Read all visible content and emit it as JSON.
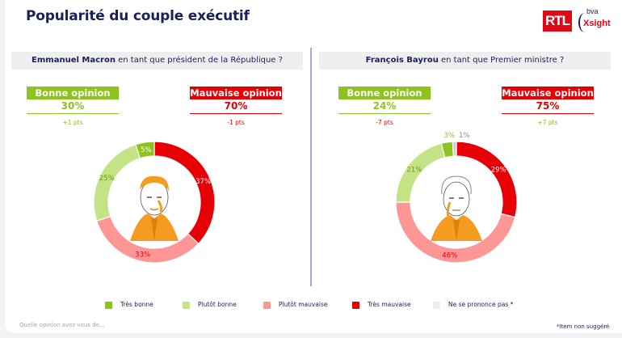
{
  "header": {
    "title": "Popularité du couple exécutif",
    "logo_rtl": "RTL",
    "logo_bva_top": "bva",
    "logo_bva_bottom": "Xsight"
  },
  "panels": [
    {
      "name_bold": "Emmanuel Macron",
      "question_rest": " en tant que président de la République ?",
      "bonne": {
        "label": "Bonne opinion",
        "value": "30%",
        "delta": "+1 pts"
      },
      "mauvaise": {
        "label": "Mauvaise opinion",
        "value": "70%",
        "delta": "-1 pts"
      }
    },
    {
      "name_bold": "François Bayrou",
      "question_rest": " en tant que Premier ministre ?",
      "bonne": {
        "label": "Bonne opinion",
        "value": "24%",
        "delta": "-7 pts"
      },
      "mauvaise": {
        "label": "Mauvaise opinion",
        "value": "75%",
        "delta": "+7 pts"
      }
    }
  ],
  "legend": [
    {
      "label": "Très bonne",
      "color": "#8cc31e"
    },
    {
      "label": "Plutôt bonne",
      "color": "#c3e384"
    },
    {
      "label": "Plutôt mauvaise",
      "color": "#ff9696"
    },
    {
      "label": "Très mauvaise",
      "color": "#e60005"
    },
    {
      "label": "Ne se prononce pas *",
      "color": "#efefef"
    }
  ],
  "footer": {
    "question": "Quelle opinion avez-vous de...",
    "note": "*Item non suggéré"
  },
  "colors": {
    "title": "#1b1f5a",
    "green": "#8cc31e",
    "red": "#e60005",
    "divider": "#a9a9cc"
  },
  "chart_data": [
    {
      "type": "pie",
      "title": "Emmanuel Macron en tant que président de la République ?",
      "categories": [
        "Très mauvaise",
        "Plutôt mauvaise",
        "Plutôt bonne",
        "Très bonne",
        "Ne se prononce pas *"
      ],
      "values": [
        37,
        33,
        25,
        5,
        0
      ],
      "labels": [
        "37%",
        "33%",
        "25%",
        "5%",
        ""
      ],
      "colors": [
        "#e60005",
        "#ff9696",
        "#c3e384",
        "#8cc31e",
        "#cfcfcf"
      ],
      "label_colors": [
        "#ffffff",
        "#e60005",
        "#6a9b1a",
        "#ffffff",
        "#ffffff"
      ],
      "donut": true
    },
    {
      "type": "pie",
      "title": "François Bayrou en tant que Premier ministre ?",
      "categories": [
        "Très mauvaise",
        "Plutôt mauvaise",
        "Plutôt bonne",
        "Très bonne",
        "Ne se prononce pas *"
      ],
      "values": [
        29,
        46,
        21,
        3,
        1
      ],
      "labels": [
        "29%",
        "46%",
        "21%",
        "3%",
        "1%"
      ],
      "colors": [
        "#e60005",
        "#ff9696",
        "#c3e384",
        "#8cc31e",
        "#cfcfcf"
      ],
      "label_colors": [
        "#ffffff",
        "#e60005",
        "#6a9b1a",
        "#ffffff",
        "#ffffff"
      ],
      "donut": true
    }
  ]
}
